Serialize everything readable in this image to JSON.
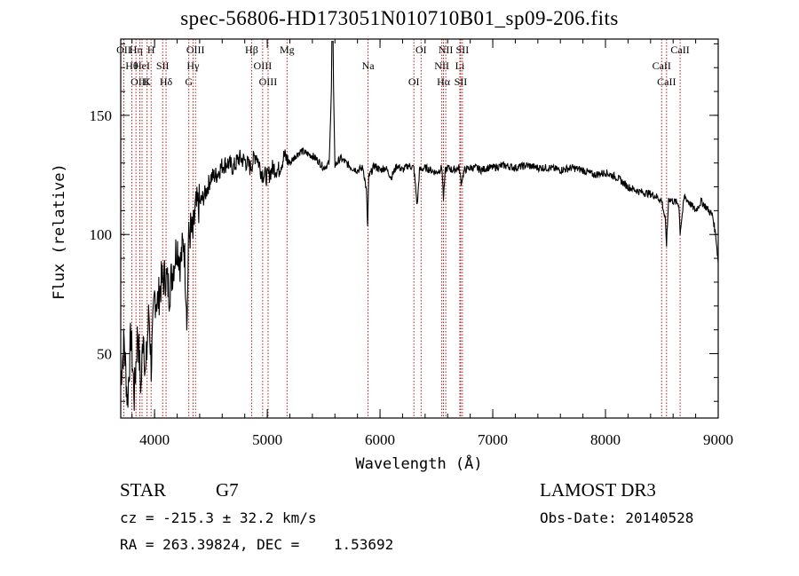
{
  "title": "spec-56806-HD173051N010710B01_sp09-206.fits",
  "footer": {
    "object_class": "STAR",
    "subclass": "G7",
    "survey": "LAMOST DR3",
    "redshift": "cz = -215.3 ± 32.2 km/s",
    "obs_date": "Obs-Date: 20140528",
    "coords": "RA = 263.39824, DEC =    1.53692"
  },
  "colors": {
    "spectrum": "#000000",
    "line_marker": "#b00000",
    "axis": "#000000"
  },
  "chart_data": {
    "type": "line",
    "title": "spec-56806-HD173051N010710B01_sp09-206.fits",
    "xlabel": "Wavelength (Å)",
    "ylabel": "Flux (relative)",
    "xlim": [
      3700,
      9000
    ],
    "ylim": [
      23,
      182
    ],
    "x_ticks": [
      4000,
      5000,
      6000,
      7000,
      8000,
      9000
    ],
    "y_ticks": [
      50,
      100,
      150
    ],
    "grid": false,
    "series": [
      {
        "x": [
          3700,
          3730,
          3760,
          3790,
          3820,
          3850,
          3880,
          3900,
          3920,
          3950,
          3970,
          4000,
          4030,
          4060,
          4100,
          4130,
          4160,
          4200,
          4230,
          4260,
          4290,
          4300,
          4320,
          4340,
          4360,
          4400,
          4450,
          4500,
          4550,
          4600,
          4650,
          4700,
          4750,
          4800,
          4850,
          4900,
          4950,
          5000,
          5050,
          5100,
          5150,
          5200,
          5250,
          5300,
          5350,
          5400,
          5450,
          5500,
          5550,
          5580,
          5600,
          5650,
          5700,
          5750,
          5800,
          5850,
          5880,
          5890,
          5900,
          5950,
          6000,
          6050,
          6100,
          6150,
          6200,
          6250,
          6300,
          6330,
          6350,
          6400,
          6450,
          6500,
          6550,
          6563,
          6580,
          6600,
          6650,
          6700,
          6720,
          6750,
          6800,
          6850,
          6900,
          6950,
          7000,
          7100,
          7200,
          7300,
          7400,
          7500,
          7600,
          7700,
          7800,
          7900,
          8000,
          8100,
          8200,
          8300,
          8400,
          8450,
          8500,
          8530,
          8542,
          8560,
          8600,
          8650,
          8662,
          8700,
          8750,
          8800,
          8850,
          8900,
          8950,
          8980,
          9000
        ],
        "y": [
          40,
          55,
          30,
          58,
          32,
          60,
          35,
          62,
          40,
          68,
          45,
          74,
          72,
          80,
          83,
          76,
          85,
          96,
          88,
          98,
          64,
          97,
          102,
          99,
          110,
          113,
          117,
          124,
          125,
          129,
          130,
          128,
          132,
          131,
          128,
          134,
          126,
          124,
          128,
          127,
          133,
          130,
          133,
          135,
          134,
          133,
          131,
          128,
          130,
          181,
          129,
          132,
          130,
          128,
          127,
          128,
          118,
          103,
          124,
          129,
          127,
          128,
          124,
          129,
          127,
          129,
          128,
          112,
          127,
          128,
          127,
          126,
          128,
          115,
          127,
          128,
          127,
          128,
          122,
          127,
          128,
          128,
          127,
          128,
          128,
          129,
          128,
          129,
          128,
          128,
          127,
          128,
          127,
          125,
          126,
          124,
          120,
          118,
          117,
          116,
          114,
          106,
          96,
          115,
          114,
          113,
          101,
          116,
          113,
          110,
          114,
          111,
          108,
          99,
          88
        ]
      }
    ],
    "line_markers": [
      {
        "label": "OII",
        "x": 3727
      },
      {
        "label": "Hθ",
        "x": 3798
      },
      {
        "label": "OIII",
        "x": 3869
      },
      {
        "label": "Hη",
        "x": 3835
      },
      {
        "label": "HeI",
        "x": 3889
      },
      {
        "label": "K",
        "x": 3934
      },
      {
        "label": "H",
        "x": 3969
      },
      {
        "label": "SII",
        "x": 4072
      },
      {
        "label": "Hδ",
        "x": 4102
      },
      {
        "label": "OIII",
        "x": 4363
      },
      {
        "label": "Hγ",
        "x": 4341
      },
      {
        "label": "G",
        "x": 4304
      },
      {
        "label": "Hβ",
        "x": 4861
      },
      {
        "label": "OIII",
        "x": 4959
      },
      {
        "label": "OIII",
        "x": 5007
      },
      {
        "label": "Mg",
        "x": 5175
      },
      {
        "label": "Na",
        "x": 5894
      },
      {
        "label": "OI",
        "x": 6300
      },
      {
        "label": "OI",
        "x": 6364
      },
      {
        "label": "NII",
        "x": 6548
      },
      {
        "label": "Hα",
        "x": 6563
      },
      {
        "label": "NII",
        "x": 6583
      },
      {
        "label": "Li",
        "x": 6708
      },
      {
        "label": "SII",
        "x": 6716
      },
      {
        "label": "SII",
        "x": 6731
      },
      {
        "label": "CaII",
        "x": 8498
      },
      {
        "label": "CaII",
        "x": 8542
      },
      {
        "label": "CaII",
        "x": 8662
      }
    ]
  }
}
